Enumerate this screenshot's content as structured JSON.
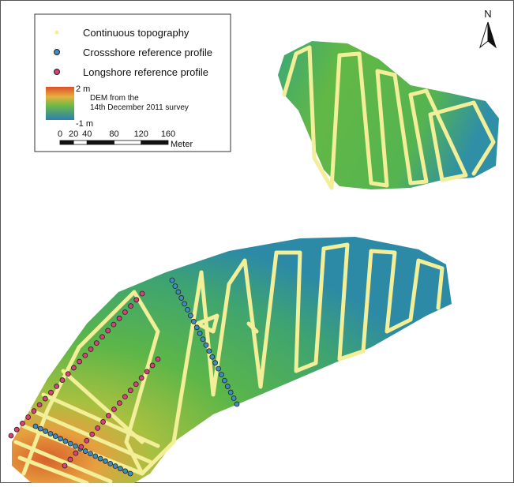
{
  "north_label": "N",
  "legend": {
    "items": [
      {
        "label": "Continuous topography"
      },
      {
        "label": "Crossshore reference profile"
      },
      {
        "label": "Longshore reference profile"
      }
    ],
    "dem": {
      "max_label": "2 m",
      "min_label": "-1 m",
      "title_line1": "DEM from the",
      "title_line2": "14th December 2011 survey"
    },
    "scale": {
      "ticks": [
        0,
        20,
        40,
        80,
        120,
        160
      ],
      "unit": "Meter"
    }
  }
}
